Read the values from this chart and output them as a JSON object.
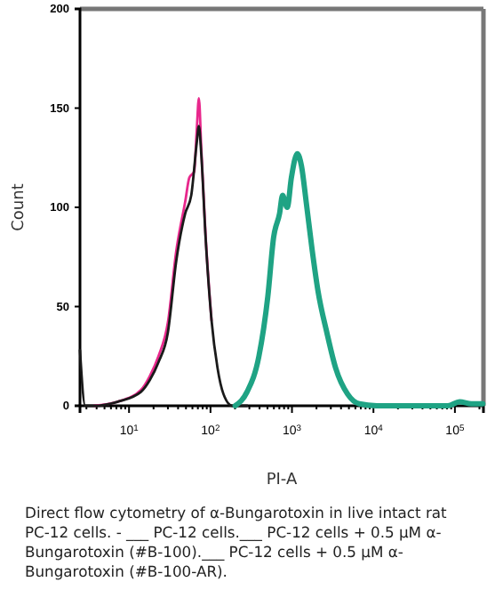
{
  "chart_data": {
    "type": "line",
    "xlabel": "PI-A",
    "ylabel": "Count",
    "log": "x",
    "xlim": [
      2.5,
      224000
    ],
    "ylim": [
      0,
      200
    ],
    "xticks": [
      {
        "value": 10,
        "label": "10$^{1}$"
      },
      {
        "value": 100,
        "label": "10$^{2}$"
      },
      {
        "value": 1000,
        "label": "10$^{3}$"
      },
      {
        "value": 10000,
        "label": "10$^{4}$"
      },
      {
        "value": 100000,
        "label": "10$^{5}$"
      }
    ],
    "yticks": [
      0,
      50,
      100,
      150,
      200
    ],
    "grid": false,
    "marker": "none",
    "line_style": "solid",
    "series": [
      {
        "color": "#e8288c",
        "x": [
          3.7,
          7.2,
          14,
          18,
          23,
          30,
          38,
          49,
          55,
          63,
          68,
          72,
          77,
          87,
          103
        ],
        "values": [
          0,
          2,
          8,
          15,
          25,
          42,
          78,
          103,
          115,
          118,
          140,
          155,
          130,
          86,
          43
        ]
      },
      {
        "color": "#1a1a1a",
        "x": [
          2.5,
          2.9,
          3.7,
          7.2,
          14,
          18,
          23,
          30,
          38,
          49,
          58,
          68,
          72,
          77,
          87,
          103,
          122,
          144,
          185,
          281
        ],
        "values": [
          28,
          0,
          0,
          2,
          7,
          13,
          22,
          37,
          73,
          97,
          106,
          133,
          141,
          127,
          85,
          43,
          19,
          6,
          0,
          0
        ]
      },
      {
        "color": "#1fa384",
        "x": [
          201,
          281,
          393,
          505,
          596,
          705,
          766,
          875,
          984,
          1162,
          1306,
          1492,
          1763,
          2084,
          2677,
          3438,
          4800,
          6700,
          11000,
          82000,
          114000,
          160000,
          220000
        ],
        "values": [
          0,
          7,
          25,
          55,
          85,
          97,
          106,
          100,
          115,
          127,
          121,
          103,
          79,
          58,
          37,
          19,
          6,
          1,
          0,
          0,
          2,
          1,
          1
        ]
      }
    ],
    "annotations": [
      "Direct flow cytometry of α-Bungarotoxin in live intact rat PC-12 cells. - ___ PC-12 cells.___ PC-12 cells + 0.5 µM α-Bungarotoxin (#B-100).___ PC-12 cells + 0.5 µM α-Bungarotoxin (#B-100-AR)."
    ]
  }
}
